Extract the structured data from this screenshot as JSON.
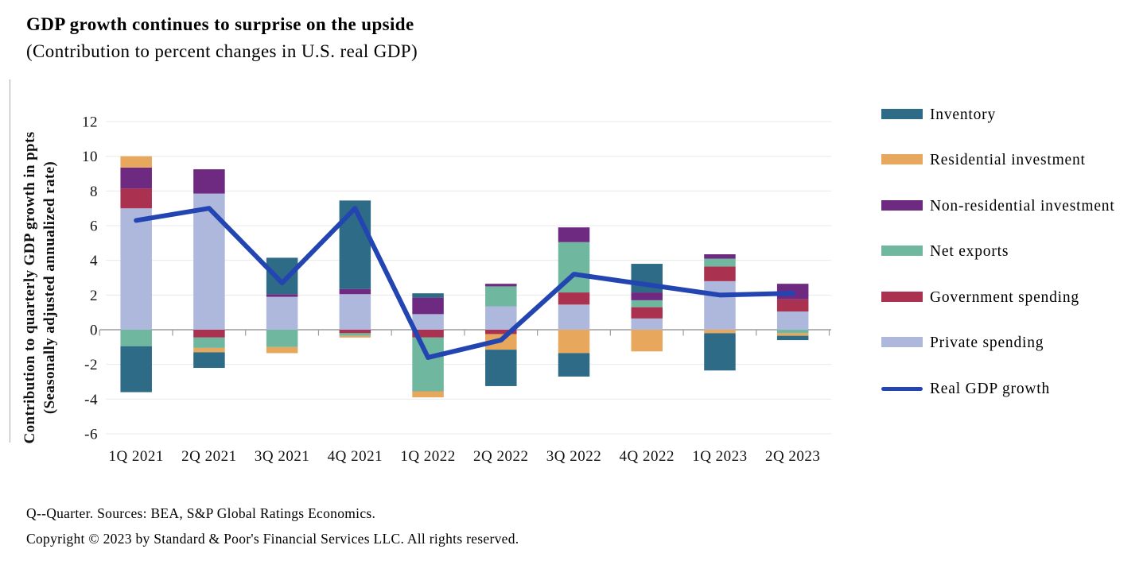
{
  "header": {
    "title": "GDP growth continues to surprise on the upside",
    "subtitle": "(Contribution to percent changes in U.S. real GDP)"
  },
  "chart_data": {
    "type": "bar",
    "variant": "stacked-bars-with-line-overlay",
    "title": "GDP growth continues to surprise on the upside",
    "subtitle": "(Contribution to percent changes in U.S. real GDP)",
    "categories": [
      "1Q 2021",
      "2Q 2021",
      "3Q 2021",
      "4Q 2021",
      "1Q 2022",
      "2Q 2022",
      "3Q 2022",
      "4Q 2022",
      "1Q 2023",
      "2Q 2023"
    ],
    "series": [
      {
        "name": "Private spending",
        "color": "#adb8dc",
        "values": [
          7.0,
          7.85,
          1.9,
          2.05,
          0.9,
          1.35,
          1.45,
          0.65,
          2.8,
          1.05
        ]
      },
      {
        "name": "Government spending",
        "color": "#aa3150",
        "values": [
          1.15,
          -0.45,
          0.0,
          -0.2,
          -0.45,
          -0.25,
          0.7,
          0.65,
          0.85,
          0.7
        ]
      },
      {
        "name": "Net exports",
        "color": "#6fb89f",
        "values": [
          -0.95,
          -0.6,
          -1.0,
          -0.15,
          -3.1,
          1.15,
          2.9,
          0.4,
          0.45,
          -0.2
        ]
      },
      {
        "name": "Non-residential investment",
        "color": "#6e2a80",
        "values": [
          1.2,
          1.4,
          0.15,
          0.3,
          0.95,
          0.15,
          0.85,
          0.45,
          0.25,
          0.9
        ]
      },
      {
        "name": "Residential investment",
        "color": "#e7a75c",
        "values": [
          0.65,
          -0.25,
          -0.35,
          -0.1,
          -0.35,
          -0.9,
          -1.35,
          -1.25,
          -0.2,
          -0.15
        ]
      },
      {
        "name": "Inventory",
        "color": "#2e6b86",
        "values": [
          -2.65,
          -0.9,
          2.1,
          5.1,
          0.25,
          -2.1,
          -1.35,
          1.65,
          -2.15,
          -0.25
        ]
      }
    ],
    "line_series": {
      "name": "Real GDP growth",
      "color": "#2345b2",
      "values": [
        6.3,
        7.0,
        2.7,
        7.0,
        -1.6,
        -0.6,
        3.2,
        2.6,
        2.0,
        2.1
      ]
    },
    "ylabel_line1": "Contribution to quarterly GDP growth in ppts",
    "ylabel_line2": "(Seasonally adjusted annualized rate)",
    "ylim": [
      -6,
      12
    ],
    "yticks": [
      12,
      10,
      8,
      6,
      4,
      2,
      0,
      -2,
      -4,
      -6
    ],
    "grid": true,
    "legend_position": "right",
    "stacking_note": "positive segments stack upward and negative segments stack downward from zero, in series order"
  },
  "legend": {
    "items": [
      {
        "label": "Inventory",
        "color": "#2e6b86",
        "kind": "box"
      },
      {
        "label": "Residential investment",
        "color": "#e7a75c",
        "kind": "box"
      },
      {
        "label": "Non-residential investment",
        "color": "#6e2a80",
        "kind": "box"
      },
      {
        "label": "Net exports",
        "color": "#6fb89f",
        "kind": "box"
      },
      {
        "label": "Government spending",
        "color": "#aa3150",
        "kind": "box"
      },
      {
        "label": "Private spending",
        "color": "#adb8dc",
        "kind": "box"
      },
      {
        "label": "Real GDP growth",
        "color": "#2345b2",
        "kind": "line"
      }
    ]
  },
  "footer": {
    "note": "Q--Quarter. Sources: BEA, S&P Global Ratings Economics.",
    "copyright": "Copyright © 2023 by Standard & Poor's Financial Services LLC. All rights reserved."
  },
  "colors": {
    "gridline": "#e8e8e8",
    "axis": "#9c9c9c",
    "text": "#111111",
    "background": "#ffffff"
  }
}
